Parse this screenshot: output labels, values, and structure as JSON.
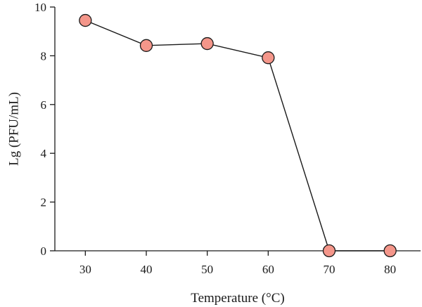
{
  "chart_data": {
    "type": "line",
    "xlabel": "Temperature (°C)",
    "ylabel": "Lg (PFU/mL)",
    "x": [
      30,
      40,
      50,
      60,
      70,
      80
    ],
    "series": [
      {
        "values": [
          9.45,
          8.42,
          8.5,
          7.92,
          0,
          0
        ]
      }
    ],
    "xlim": [
      25,
      85
    ],
    "ylim": [
      0,
      10
    ],
    "xticks": [
      "30",
      "40",
      "50",
      "60",
      "70",
      "80"
    ],
    "yticks": [
      "0",
      "2",
      "4",
      "6",
      "8",
      "10"
    ],
    "grid": false,
    "legend": "none",
    "marker_color": "#f4968a",
    "line_color": "#1a1a1a"
  }
}
